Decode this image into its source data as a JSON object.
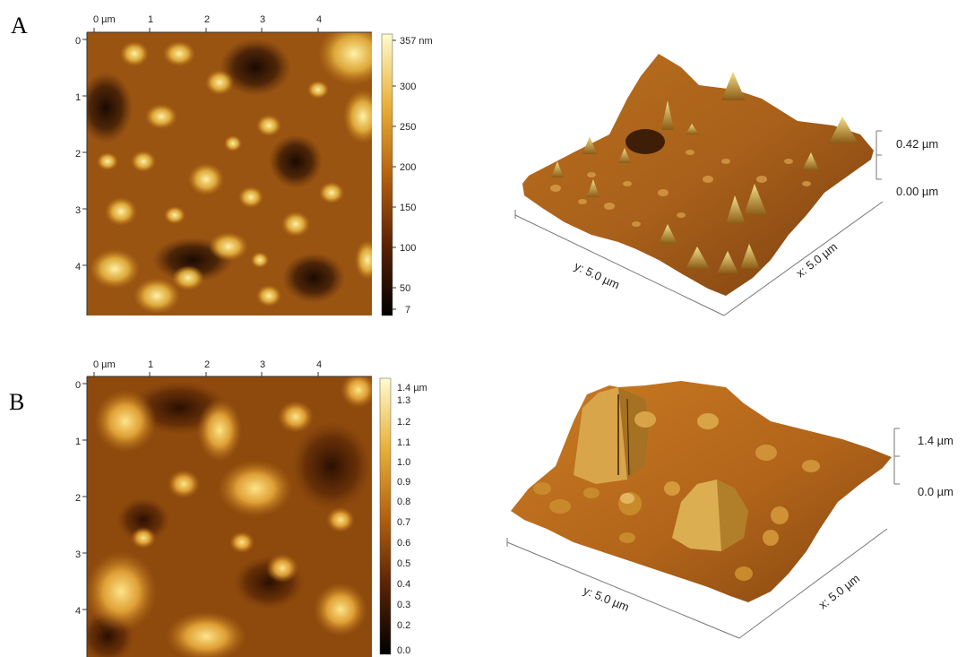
{
  "figure": {
    "panels": [
      {
        "label": "A",
        "map2d": {
          "x_ticks": [
            "0 µm",
            "1",
            "2",
            "3",
            "4"
          ],
          "y_ticks": [
            "0",
            "1",
            "2",
            "3",
            "4"
          ]
        },
        "colorbar": {
          "ticks": [
            "357 nm",
            "300",
            "250",
            "200",
            "150",
            "100",
            "50",
            "7"
          ]
        },
        "view3d": {
          "z_top": "0.42 µm",
          "z_bottom": "0.00 µm",
          "y_axis": "y: 5.0 µm",
          "x_axis": "x: 5.0 µm"
        }
      },
      {
        "label": "B",
        "map2d": {
          "x_ticks": [
            "0 µm",
            "1",
            "2",
            "3",
            "4"
          ],
          "y_ticks": [
            "0",
            "1",
            "2",
            "3",
            "4"
          ]
        },
        "colorbar": {
          "ticks": [
            "1.4 µm",
            "1.3",
            "1.2",
            "1.1",
            "1.0",
            "0.9",
            "0.8",
            "0.7",
            "0.6",
            "0.5",
            "0.4",
            "0.3",
            "0.2",
            "0.0"
          ]
        },
        "view3d": {
          "z_top": "1.4 µm",
          "z_bottom": "0.0 µm",
          "y_axis": "y: 5.0 µm",
          "x_axis": "x: 5.0 µm"
        }
      }
    ]
  }
}
